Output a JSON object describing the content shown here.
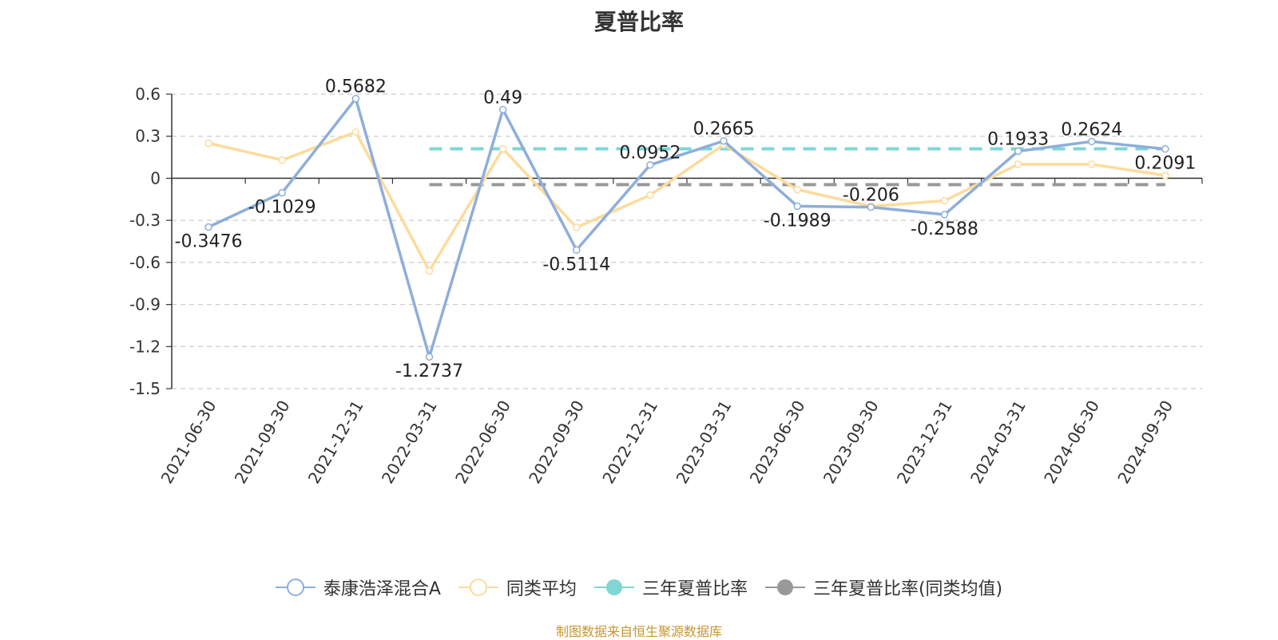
{
  "chart_data": {
    "type": "line",
    "title": "夏普比率",
    "categories": [
      "2021-06-30",
      "2021-09-30",
      "2021-12-31",
      "2022-03-31",
      "2022-06-30",
      "2022-09-30",
      "2022-12-31",
      "2023-03-31",
      "2023-06-30",
      "2023-09-30",
      "2023-12-31",
      "2024-03-31",
      "2024-06-30",
      "2024-09-30"
    ],
    "y_ticks": [
      "0.6",
      "0.3",
      "0",
      "-0.3",
      "-0.6",
      "-0.9",
      "-1.2",
      "-1.5"
    ],
    "ylim": [
      -1.5,
      0.6
    ],
    "grid": true,
    "legend_position": "bottom",
    "series": [
      {
        "name": "泰康浩泽混合A",
        "color": "#8eaedb",
        "values": [
          -0.3476,
          -0.1029,
          0.5682,
          -1.2737,
          0.49,
          -0.5114,
          0.0952,
          0.2665,
          -0.1989,
          -0.206,
          -0.2588,
          0.1933,
          0.2624,
          0.2091
        ],
        "labels": [
          "-0.3476",
          "-0.1029",
          "0.5682",
          "-1.2737",
          "0.49",
          "-0.5114",
          "0.0952",
          "0.2665",
          "-0.1989",
          "-0.206",
          "-0.2588",
          "0.1933",
          "0.2624",
          "0.2091"
        ]
      },
      {
        "name": "同类平均",
        "color": "#fddb9c",
        "values": [
          0.25,
          0.13,
          0.33,
          -0.66,
          0.21,
          -0.35,
          -0.12,
          0.24,
          -0.08,
          -0.2,
          -0.16,
          0.1,
          0.1,
          0.02
        ]
      },
      {
        "name": "三年夏普比率",
        "color": "#7fd6d4",
        "constant": 0.21,
        "from_index": 3,
        "to_index": 13,
        "dashed": true
      },
      {
        "name": "三年夏普比率(同类均值)",
        "color": "#999999",
        "constant": -0.045,
        "from_index": 3,
        "to_index": 13,
        "dashed": true
      }
    ]
  },
  "footer": "制图数据来自恒生聚源数据库"
}
